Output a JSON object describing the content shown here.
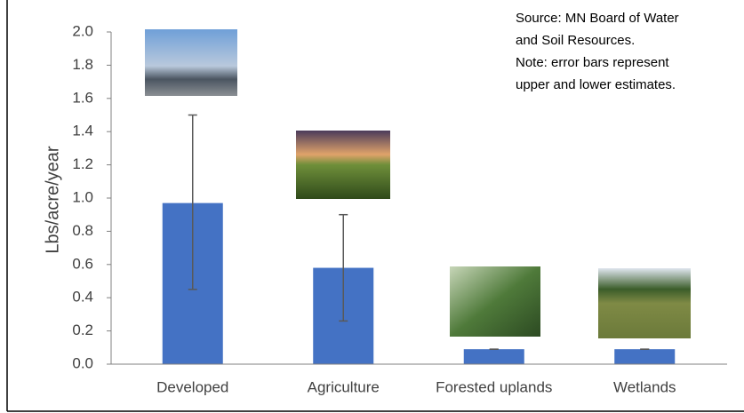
{
  "chart_data": {
    "type": "bar",
    "y_label": "Lbs/acre/year",
    "annotations": [
      "Source: MN Board of Water",
      "and Soil Resources.",
      "Note: error bars represent",
      "upper and lower estimates."
    ],
    "categories": [
      "Developed",
      "Agriculture",
      "Forested uplands",
      "Wetlands"
    ],
    "values": [
      0.97,
      0.58,
      0.09,
      0.09
    ],
    "upper": [
      1.5,
      0.9,
      0.09,
      0.09
    ],
    "lower": [
      0.45,
      0.26,
      0.09,
      0.09
    ],
    "color": "#4472c4",
    "error_color": "#595959",
    "ylim": [
      0,
      2.0
    ],
    "yticks": [
      {
        "value": 0,
        "label": "0.0"
      },
      {
        "value": 0.2,
        "label": "0.2"
      },
      {
        "value": 0.4,
        "label": "0.4"
      },
      {
        "value": 0.6,
        "label": "0.6"
      },
      {
        "value": 0.8,
        "label": "0.8"
      },
      {
        "value": 1.0,
        "label": "1.0"
      },
      {
        "value": 1.2,
        "label": "1.2"
      },
      {
        "value": 1.4,
        "label": "1.4"
      },
      {
        "value": 1.6,
        "label": "1.6"
      },
      {
        "value": 1.8,
        "label": "1.8"
      },
      {
        "value": 2.0,
        "label": "2.0"
      }
    ],
    "grid": false
  }
}
